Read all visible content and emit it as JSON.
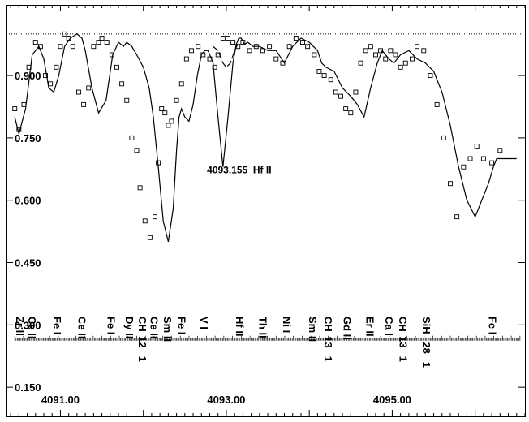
{
  "chart_data": {
    "type": "line",
    "title": "",
    "xlabel": "",
    "ylabel": "",
    "xlim": [
      4090.35,
      4096.6
    ],
    "ylim": [
      0.08,
      1.07
    ],
    "y_ticks": [
      {
        "value": 0.9,
        "label": "0.900"
      },
      {
        "value": 0.75,
        "label": "0.750"
      },
      {
        "value": 0.6,
        "label": "0.600"
      },
      {
        "value": 0.45,
        "label": "0.450"
      },
      {
        "value": 0.3,
        "label": "0.300"
      },
      {
        "value": 0.15,
        "label": "0.150"
      }
    ],
    "x_ticks": [
      {
        "value": 4091.0,
        "label": "4091.00"
      },
      {
        "value": 4093.0,
        "label": "4093.00"
      },
      {
        "value": 4095.0,
        "label": "4095.00"
      }
    ],
    "continuum": 1.0,
    "annotation": "4093.155  Hf II",
    "annotation_at": {
      "x": 4093.55,
      "y": 0.665
    },
    "series": [
      {
        "style": "solid",
        "x": [
          4090.45,
          4090.5,
          4090.58,
          4090.66,
          4090.74,
          4090.8,
          4090.86,
          4090.92,
          4090.98,
          4091.05,
          4091.12,
          4091.2,
          4091.26,
          4091.3,
          4091.38,
          4091.46,
          4091.55,
          4091.63,
          4091.7,
          4091.76,
          4091.8,
          4091.86,
          4091.92,
          4092.0,
          4092.07,
          4092.12,
          4092.18,
          4092.24,
          4092.3,
          4092.36,
          4092.4,
          4092.43,
          4092.46,
          4092.5,
          4092.55,
          4092.6,
          4092.65,
          4092.7,
          4092.74,
          4092.78,
          4092.84,
          4092.9,
          4092.96,
          4093.02,
          4093.08,
          4093.12,
          4093.15,
          4093.18,
          4093.22,
          4093.26,
          4093.32,
          4093.4,
          4093.5,
          4093.6,
          4093.7,
          4093.8,
          4093.9,
          4094.0,
          4094.05,
          4094.1,
          4094.15,
          4094.2,
          4094.3,
          4094.4,
          4094.5,
          4094.58,
          4094.66,
          4094.74,
          4094.82,
          4094.88,
          4094.92,
          4094.96,
          4095.02,
          4095.1,
          4095.2,
          4095.3,
          4095.4,
          4095.5,
          4095.6,
          4095.7,
          4095.8,
          4095.9,
          4096.0,
          4096.08,
          4096.16,
          4096.22,
          4096.26,
          4096.3,
          4096.35,
          4096.4,
          4096.45,
          4096.5
        ],
        "y": [
          0.8,
          0.76,
          0.82,
          0.95,
          0.97,
          0.94,
          0.87,
          0.86,
          0.9,
          0.97,
          0.99,
          1.0,
          0.99,
          0.96,
          0.87,
          0.81,
          0.84,
          0.95,
          0.98,
          0.97,
          0.98,
          0.97,
          0.95,
          0.92,
          0.87,
          0.8,
          0.68,
          0.55,
          0.5,
          0.58,
          0.72,
          0.8,
          0.82,
          0.8,
          0.79,
          0.83,
          0.9,
          0.95,
          0.96,
          0.96,
          0.93,
          0.8,
          0.68,
          0.8,
          0.93,
          0.975,
          0.99,
          0.99,
          0.975,
          0.98,
          0.97,
          0.97,
          0.96,
          0.96,
          0.93,
          0.97,
          0.99,
          0.98,
          0.97,
          0.96,
          0.93,
          0.92,
          0.91,
          0.87,
          0.85,
          0.83,
          0.8,
          0.87,
          0.93,
          0.96,
          0.95,
          0.94,
          0.93,
          0.95,
          0.96,
          0.94,
          0.93,
          0.91,
          0.86,
          0.78,
          0.68,
          0.6,
          0.56,
          0.6,
          0.64,
          0.68,
          0.7,
          0.7,
          0.7,
          0.7,
          0.7,
          0.7
        ]
      },
      {
        "style": "dashed",
        "x": [
          4092.84,
          4092.9,
          4092.96,
          4093.0,
          4093.05,
          4093.1,
          4093.15
        ],
        "y": [
          0.97,
          0.96,
          0.93,
          0.92,
          0.93,
          0.96,
          0.98
        ]
      },
      {
        "style": "markers",
        "marker": "open-square",
        "x": [
          4090.45,
          4090.5,
          4090.56,
          4090.62,
          4090.7,
          4090.76,
          4090.82,
          4090.88,
          4090.95,
          4091.0,
          4091.05,
          4091.1,
          4091.15,
          4091.22,
          4091.28,
          4091.34,
          4091.4,
          4091.46,
          4091.5,
          4091.56,
          4091.62,
          4091.68,
          4091.74,
          4091.8,
          4091.86,
          4091.92,
          4091.96,
          4092.02,
          4092.08,
          4092.14,
          4092.18,
          4092.22,
          4092.26,
          4092.3,
          4092.34,
          4092.4,
          4092.46,
          4092.52,
          4092.58,
          4092.66,
          4092.72,
          4092.8,
          4092.86,
          4092.9,
          4092.96,
          4093.02,
          4093.08,
          4093.14,
          4093.2,
          4093.28,
          4093.36,
          4093.44,
          4093.52,
          4093.6,
          4093.68,
          4093.76,
          4093.84,
          4093.92,
          4093.98,
          4094.06,
          4094.12,
          4094.18,
          4094.26,
          4094.32,
          4094.38,
          4094.44,
          4094.5,
          4094.56,
          4094.62,
          4094.68,
          4094.74,
          4094.8,
          4094.86,
          4094.92,
          4094.98,
          4095.04,
          4095.1,
          4095.16,
          4095.24,
          4095.3,
          4095.38,
          4095.46,
          4095.54,
          4095.62,
          4095.7,
          4095.78,
          4095.86,
          4095.94,
          4096.02,
          4096.1,
          4096.2,
          4096.3
        ],
        "y": [
          0.82,
          0.77,
          0.83,
          0.92,
          0.98,
          0.97,
          0.9,
          0.88,
          0.92,
          0.97,
          1.0,
          0.99,
          0.97,
          0.86,
          0.83,
          0.87,
          0.97,
          0.98,
          0.99,
          0.98,
          0.95,
          0.92,
          0.88,
          0.84,
          0.75,
          0.72,
          0.63,
          0.55,
          0.51,
          0.56,
          0.69,
          0.82,
          0.81,
          0.78,
          0.79,
          0.84,
          0.88,
          0.94,
          0.96,
          0.97,
          0.95,
          0.94,
          0.92,
          0.95,
          0.99,
          0.99,
          0.98,
          0.97,
          0.98,
          0.96,
          0.97,
          0.96,
          0.97,
          0.94,
          0.93,
          0.97,
          0.99,
          0.98,
          0.97,
          0.95,
          0.91,
          0.9,
          0.89,
          0.86,
          0.85,
          0.82,
          0.81,
          0.86,
          0.93,
          0.96,
          0.97,
          0.95,
          0.96,
          0.94,
          0.96,
          0.95,
          0.92,
          0.93,
          0.94,
          0.97,
          0.96,
          0.9,
          0.83,
          0.75,
          0.64,
          0.56,
          0.68,
          0.7,
          0.73,
          0.7,
          0.69,
          0.72
        ]
      }
    ],
    "line_labels": [
      {
        "x": 4090.5,
        "lines": [
          "Zr II"
        ]
      },
      {
        "x": 4090.65,
        "lines": [
          "Ce II"
        ]
      },
      {
        "x": 4090.95,
        "lines": [
          "Fe I"
        ]
      },
      {
        "x": 4091.25,
        "lines": [
          "Ce II"
        ]
      },
      {
        "x": 4091.6,
        "lines": [
          "Fe I"
        ]
      },
      {
        "x": 4091.82,
        "lines": [
          "Dy II"
        ]
      },
      {
        "x": 4091.98,
        "lines": [
          "CH",
          "12",
          "1"
        ]
      },
      {
        "x": 4092.12,
        "lines": [
          "Ce II"
        ]
      },
      {
        "x": 4092.28,
        "lines": [
          "Sm II"
        ]
      },
      {
        "x": 4092.45,
        "lines": [
          "Fe I"
        ]
      },
      {
        "x": 4092.72,
        "lines": [
          "V I"
        ]
      },
      {
        "x": 4093.15,
        "lines": [
          "Hf II"
        ]
      },
      {
        "x": 4093.43,
        "lines": [
          "Th II"
        ]
      },
      {
        "x": 4093.72,
        "lines": [
          "Ni I"
        ]
      },
      {
        "x": 4094.03,
        "lines": [
          "Sm II"
        ]
      },
      {
        "x": 4094.22,
        "lines": [
          "CH",
          "13",
          "1"
        ]
      },
      {
        "x": 4094.45,
        "lines": [
          "Gd II"
        ]
      },
      {
        "x": 4094.72,
        "lines": [
          "Er II"
        ]
      },
      {
        "x": 4094.95,
        "lines": [
          "Ca I"
        ]
      },
      {
        "x": 4095.12,
        "lines": [
          "CH",
          "13",
          "1"
        ]
      },
      {
        "x": 4095.4,
        "lines": [
          "SiH",
          "28",
          "1"
        ]
      },
      {
        "x": 4096.2,
        "lines": [
          "Fe I"
        ]
      }
    ]
  }
}
